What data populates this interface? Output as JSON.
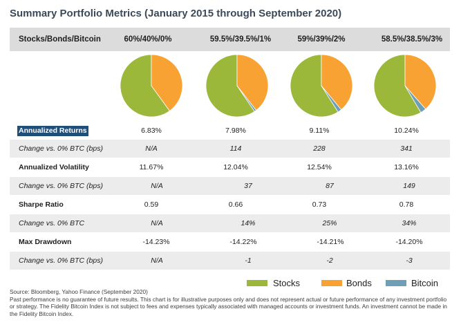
{
  "title": "Summary Portfolio Metrics (January 2015 through September 2020)",
  "header": {
    "label": "Stocks/Bonds/Bitcoin",
    "columns": [
      "60%/40%/0%",
      "59.5%/39.5%/1%",
      "59%/39%/2%",
      "58.5%/38.5%/3%"
    ]
  },
  "colors": {
    "stocks": "#9bb83a",
    "bonds": "#f7a233",
    "bitcoin": "#6f9fb7",
    "header_bg": "#dcdcdc",
    "highlight": "#1f4e79"
  },
  "chart_data": [
    {
      "type": "pie",
      "categories": [
        "Stocks",
        "Bonds",
        "Bitcoin"
      ],
      "values": [
        60,
        40,
        0
      ]
    },
    {
      "type": "pie",
      "categories": [
        "Stocks",
        "Bonds",
        "Bitcoin"
      ],
      "values": [
        59.5,
        39.5,
        1
      ]
    },
    {
      "type": "pie",
      "categories": [
        "Stocks",
        "Bonds",
        "Bitcoin"
      ],
      "values": [
        59,
        39,
        2
      ]
    },
    {
      "type": "pie",
      "categories": [
        "Stocks",
        "Bonds",
        "Bitcoin"
      ],
      "values": [
        58.5,
        38.5,
        3
      ]
    }
  ],
  "rows": [
    {
      "label": "Annualized Returns",
      "values": [
        "6.83%",
        "7.98%",
        "9.11%",
        "10.24%"
      ]
    },
    {
      "label": "Change vs. 0% BTC (bps)",
      "values": [
        "N/A",
        "114",
        "228",
        "341"
      ]
    },
    {
      "label": "Annualized Volatility",
      "values": [
        "11.67%",
        "12.04%",
        "12.54%",
        "13.16%"
      ]
    },
    {
      "label": "Change vs. 0% BTC (bps)",
      "values": [
        "N/A",
        "37",
        "87",
        "149"
      ]
    },
    {
      "label": "Sharpe Ratio",
      "values": [
        "0.59",
        "0.66",
        "0.73",
        "0.78"
      ]
    },
    {
      "label": "Change vs. 0% BTC",
      "values": [
        "N/A",
        "14%",
        "25%",
        "34%"
      ]
    },
    {
      "label": "Max Drawdown",
      "values": [
        "-14.23%",
        "-14.22%",
        "-14.21%",
        "-14.20%"
      ]
    },
    {
      "label": "Change vs. 0% BTC (bps)",
      "values": [
        "N/A",
        "-1",
        "-2",
        "-3"
      ]
    }
  ],
  "legend": [
    "Stocks",
    "Bonds",
    "Bitcoin"
  ],
  "footer": {
    "source": "Source: Bloomberg, Yahoo Finance (September 2020)",
    "disclaimer": "Past performance is no guarantee of future results. This chart is for illustrative purposes only and does not represent actual or future performance of any investment portfolio or strategy. The Fidelity Bitcoin Index is not subject to fees and expenses typically associated with managed accounts or investment funds. An investment cannot be made in the Fidelity Bitcoin Index."
  }
}
